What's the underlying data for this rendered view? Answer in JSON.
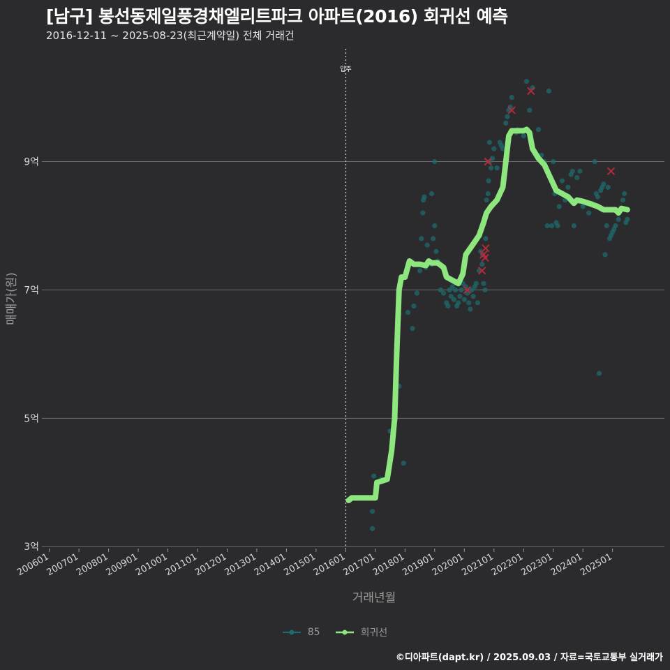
{
  "title": "[남구] 봉선동제일풍경채엘리트파크 아파트(2016) 회귀선 예측",
  "subtitle": "2016-12-11 ~ 2025-08-23(최근계약일) 전체 거래건",
  "caption": "©디아파트(dapt.kr) / 2025.09.03 / 자료=국토교통부 실거래가",
  "colors": {
    "background": "#2b2b2d",
    "grid": "#6e6e6e",
    "scatter": "#1f6b6e",
    "regression": "#8ee67e",
    "cancelled_marker": "#b52a3a",
    "vline": "#bbbbbb"
  },
  "legend": [
    {
      "label": "85",
      "icon": "teal-dot-line-icon"
    },
    {
      "label": "회귀선",
      "icon": "green-dot-line-icon"
    }
  ],
  "chart_data": {
    "type": "scatter",
    "xlabel": "거래년월",
    "ylabel": "매매가(원)",
    "xlim": [
      2005.75,
      2026.75
    ],
    "ylim": [
      2.97,
      10.8
    ],
    "x_ticks": [
      {
        "label": "200601",
        "value": 2006.0
      },
      {
        "label": "200701",
        "value": 2007.0
      },
      {
        "label": "200801",
        "value": 2008.0
      },
      {
        "label": "200901",
        "value": 2009.0
      },
      {
        "label": "201001",
        "value": 2010.0
      },
      {
        "label": "201101",
        "value": 2011.0
      },
      {
        "label": "201201",
        "value": 2012.0
      },
      {
        "label": "201301",
        "value": 2013.0
      },
      {
        "label": "201401",
        "value": 2014.0
      },
      {
        "label": "201501",
        "value": 2015.0
      },
      {
        "label": "201601",
        "value": 2016.0
      },
      {
        "label": "201701",
        "value": 2017.0
      },
      {
        "label": "201801",
        "value": 2018.0
      },
      {
        "label": "201901",
        "value": 2019.0
      },
      {
        "label": "202001",
        "value": 2020.0
      },
      {
        "label": "202101",
        "value": 2021.0
      },
      {
        "label": "202201",
        "value": 2022.0
      },
      {
        "label": "202301",
        "value": 2023.0
      },
      {
        "label": "202401",
        "value": 2024.0
      },
      {
        "label": "202501",
        "value": 2025.0
      }
    ],
    "y_ticks": [
      {
        "label": "3억",
        "value": 3
      },
      {
        "label": "5억",
        "value": 5
      },
      {
        "label": "7억",
        "value": 7
      },
      {
        "label": "9억",
        "value": 9
      }
    ],
    "annotation": {
      "label": "입주",
      "x": 2016.0
    },
    "series": [
      {
        "name": "85",
        "points": [
          [
            2016.95,
            4.1
          ],
          [
            2016.9,
            3.55
          ],
          [
            2016.9,
            3.28
          ],
          [
            2017.2,
            4.05
          ],
          [
            2017.5,
            4.8
          ],
          [
            2017.8,
            5.5
          ],
          [
            2017.95,
            4.3
          ],
          [
            2018.1,
            6.65
          ],
          [
            2018.25,
            6.4
          ],
          [
            2018.3,
            6.75
          ],
          [
            2018.4,
            6.95
          ],
          [
            2018.5,
            7.3
          ],
          [
            2018.55,
            7.8
          ],
          [
            2018.6,
            8.2
          ],
          [
            2018.62,
            8.4
          ],
          [
            2018.65,
            8.45
          ],
          [
            2018.7,
            7.35
          ],
          [
            2018.75,
            7.7
          ],
          [
            2018.8,
            7.4
          ],
          [
            2018.9,
            7.4
          ],
          [
            2018.9,
            8.5
          ],
          [
            2018.95,
            7.8
          ],
          [
            2019.0,
            8.0
          ],
          [
            2019.0,
            9.0
          ],
          [
            2019.05,
            7.6
          ],
          [
            2019.1,
            7.45
          ],
          [
            2019.2,
            7.0
          ],
          [
            2019.3,
            6.95
          ],
          [
            2019.4,
            6.8
          ],
          [
            2019.45,
            6.75
          ],
          [
            2019.5,
            7.0
          ],
          [
            2019.55,
            6.9
          ],
          [
            2019.6,
            7.05
          ],
          [
            2019.65,
            6.85
          ],
          [
            2019.7,
            7.0
          ],
          [
            2019.75,
            6.75
          ],
          [
            2019.8,
            6.8
          ],
          [
            2019.85,
            6.9
          ],
          [
            2019.9,
            7.0
          ],
          [
            2019.95,
            7.1
          ],
          [
            2020.0,
            6.85
          ],
          [
            2020.05,
            7.05
          ],
          [
            2020.1,
            6.95
          ],
          [
            2020.15,
            6.8
          ],
          [
            2020.2,
            6.7
          ],
          [
            2020.25,
            7.0
          ],
          [
            2020.3,
            6.9
          ],
          [
            2020.35,
            7.05
          ],
          [
            2020.4,
            7.1
          ],
          [
            2020.45,
            6.8
          ],
          [
            2020.5,
            7.3
          ],
          [
            2020.55,
            7.6
          ],
          [
            2020.6,
            7.4
          ],
          [
            2020.62,
            7.55
          ],
          [
            2020.65,
            7.1
          ],
          [
            2020.7,
            7.0
          ],
          [
            2020.72,
            7.8
          ],
          [
            2020.75,
            8.4
          ],
          [
            2020.77,
            8.2
          ],
          [
            2020.8,
            8.5
          ],
          [
            2020.82,
            8.7
          ],
          [
            2020.85,
            9.0
          ],
          [
            2020.85,
            9.3
          ],
          [
            2020.9,
            8.9
          ],
          [
            2020.95,
            9.05
          ],
          [
            2021.0,
            9.2
          ],
          [
            2021.1,
            8.9
          ],
          [
            2021.2,
            9.3
          ],
          [
            2021.25,
            9.25
          ],
          [
            2021.3,
            9.2
          ],
          [
            2021.4,
            9.6
          ],
          [
            2021.45,
            9.7
          ],
          [
            2021.5,
            9.8
          ],
          [
            2021.55,
            9.85
          ],
          [
            2021.6,
            10.0
          ],
          [
            2021.75,
            9.45
          ],
          [
            2021.8,
            9.5
          ],
          [
            2022.0,
            9.4
          ],
          [
            2022.1,
            10.25
          ],
          [
            2022.2,
            9.8
          ],
          [
            2022.3,
            10.15
          ],
          [
            2022.5,
            9.5
          ],
          [
            2022.6,
            9.1
          ],
          [
            2022.7,
            9.0
          ],
          [
            2022.8,
            8.0
          ],
          [
            2022.85,
            10.1
          ],
          [
            2022.95,
            8.0
          ],
          [
            2023.0,
            9.0
          ],
          [
            2023.05,
            8.5
          ],
          [
            2023.1,
            8.05
          ],
          [
            2023.15,
            8.0
          ],
          [
            2023.2,
            8.3
          ],
          [
            2023.3,
            8.7
          ],
          [
            2023.4,
            8.4
          ],
          [
            2023.5,
            8.6
          ],
          [
            2023.6,
            8.8
          ],
          [
            2023.65,
            8.85
          ],
          [
            2023.7,
            8.0
          ],
          [
            2023.8,
            8.75
          ],
          [
            2023.9,
            8.85
          ],
          [
            2024.0,
            8.3
          ],
          [
            2024.1,
            8.35
          ],
          [
            2024.2,
            8.2
          ],
          [
            2024.3,
            8.35
          ],
          [
            2024.4,
            9.0
          ],
          [
            2024.45,
            8.5
          ],
          [
            2024.5,
            8.45
          ],
          [
            2024.55,
            5.7
          ],
          [
            2024.6,
            8.55
          ],
          [
            2024.65,
            8.6
          ],
          [
            2024.7,
            8.65
          ],
          [
            2024.75,
            7.55
          ],
          [
            2024.8,
            8.0
          ],
          [
            2024.85,
            8.6
          ],
          [
            2024.9,
            7.8
          ],
          [
            2024.95,
            7.85
          ],
          [
            2025.0,
            7.9
          ],
          [
            2025.05,
            7.95
          ],
          [
            2025.1,
            8.0
          ],
          [
            2025.2,
            8.1
          ],
          [
            2025.3,
            8.25
          ],
          [
            2025.35,
            8.4
          ],
          [
            2025.4,
            8.5
          ],
          [
            2025.45,
            8.05
          ],
          [
            2025.5,
            8.1
          ]
        ]
      },
      {
        "name": "회귀선",
        "points": [
          [
            2016.1,
            3.72
          ],
          [
            2016.2,
            3.76
          ],
          [
            2016.5,
            3.76
          ],
          [
            2016.8,
            3.76
          ],
          [
            2017.0,
            3.76
          ],
          [
            2017.05,
            4.0
          ],
          [
            2017.2,
            4.02
          ],
          [
            2017.4,
            4.05
          ],
          [
            2017.55,
            4.5
          ],
          [
            2017.65,
            5.0
          ],
          [
            2017.72,
            6.0
          ],
          [
            2017.8,
            7.0
          ],
          [
            2017.88,
            7.2
          ],
          [
            2018.0,
            7.2
          ],
          [
            2018.15,
            7.45
          ],
          [
            2018.3,
            7.4
          ],
          [
            2018.5,
            7.4
          ],
          [
            2018.7,
            7.38
          ],
          [
            2018.8,
            7.45
          ],
          [
            2018.9,
            7.42
          ],
          [
            2019.1,
            7.42
          ],
          [
            2019.3,
            7.35
          ],
          [
            2019.4,
            7.2
          ],
          [
            2019.6,
            7.15
          ],
          [
            2019.8,
            7.1
          ],
          [
            2019.95,
            7.25
          ],
          [
            2020.05,
            7.55
          ],
          [
            2020.2,
            7.65
          ],
          [
            2020.35,
            7.75
          ],
          [
            2020.5,
            7.85
          ],
          [
            2020.65,
            8.05
          ],
          [
            2020.75,
            8.2
          ],
          [
            2020.9,
            8.3
          ],
          [
            2021.1,
            8.4
          ],
          [
            2021.3,
            8.6
          ],
          [
            2021.4,
            9.0
          ],
          [
            2021.5,
            9.4
          ],
          [
            2021.6,
            9.48
          ],
          [
            2021.8,
            9.48
          ],
          [
            2022.0,
            9.48
          ],
          [
            2022.1,
            9.5
          ],
          [
            2022.2,
            9.45
          ],
          [
            2022.3,
            9.2
          ],
          [
            2022.5,
            9.05
          ],
          [
            2022.7,
            8.95
          ],
          [
            2022.9,
            8.75
          ],
          [
            2023.1,
            8.55
          ],
          [
            2023.3,
            8.5
          ],
          [
            2023.5,
            8.45
          ],
          [
            2023.7,
            8.35
          ],
          [
            2023.8,
            8.4
          ],
          [
            2024.0,
            8.38
          ],
          [
            2024.2,
            8.35
          ],
          [
            2024.5,
            8.3
          ],
          [
            2024.7,
            8.25
          ],
          [
            2024.9,
            8.25
          ],
          [
            2025.1,
            8.25
          ],
          [
            2025.2,
            8.2
          ],
          [
            2025.3,
            8.27
          ],
          [
            2025.5,
            8.25
          ]
        ]
      }
    ],
    "cancelled": [
      [
        2020.1,
        7.0
      ],
      [
        2020.6,
        7.3
      ],
      [
        2020.65,
        7.55
      ],
      [
        2020.7,
        7.5
      ],
      [
        2020.72,
        7.65
      ],
      [
        2020.8,
        9.0
      ],
      [
        2021.6,
        9.8
      ],
      [
        2022.25,
        10.1
      ],
      [
        2024.95,
        8.85
      ]
    ]
  }
}
